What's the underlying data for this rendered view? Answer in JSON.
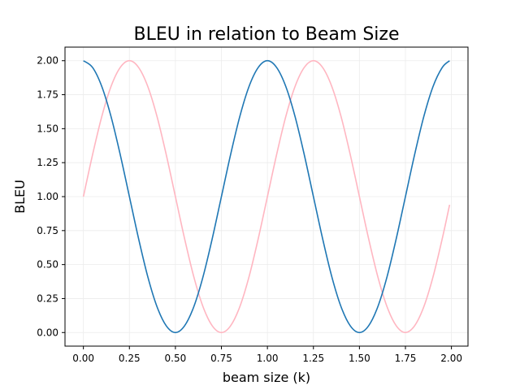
{
  "chart_data": {
    "type": "line",
    "title": "BLEU in relation to Beam Size",
    "xlabel": "beam size (k)",
    "ylabel": "BLEU",
    "xlim": [
      -0.1,
      2.09
    ],
    "ylim": [
      -0.1,
      2.1
    ],
    "xticks": [
      "0.00",
      "0.25",
      "0.50",
      "0.75",
      "1.00",
      "1.25",
      "1.50",
      "1.75",
      "2.00"
    ],
    "yticks": [
      "0.00",
      "0.25",
      "0.50",
      "0.75",
      "1.00",
      "1.25",
      "1.50",
      "1.75",
      "2.00"
    ],
    "grid": true,
    "legend": false,
    "x": [
      0.0,
      0.05,
      0.1,
      0.15,
      0.2,
      0.25,
      0.3,
      0.35,
      0.4,
      0.45,
      0.5,
      0.55,
      0.6,
      0.65,
      0.7,
      0.75,
      0.8,
      0.85,
      0.9,
      0.95,
      1.0,
      1.05,
      1.1,
      1.15,
      1.2,
      1.25,
      1.3,
      1.35,
      1.4,
      1.45,
      1.5,
      1.55,
      1.6,
      1.65,
      1.7,
      1.75,
      1.8,
      1.85,
      1.9,
      1.95,
      1.99
    ],
    "series": [
      {
        "color": "#ffb6c1",
        "values": [
          1.0,
          1.31,
          1.59,
          1.81,
          1.95,
          2.0,
          1.95,
          1.81,
          1.59,
          1.31,
          1.0,
          0.69,
          0.41,
          0.19,
          0.05,
          0.0,
          0.05,
          0.19,
          0.41,
          0.69,
          1.0,
          1.31,
          1.59,
          1.81,
          1.95,
          2.0,
          1.95,
          1.81,
          1.59,
          1.31,
          1.0,
          0.69,
          0.41,
          0.19,
          0.05,
          0.0,
          0.05,
          0.19,
          0.41,
          0.69,
          0.94
        ]
      },
      {
        "color": "#1f77b4",
        "values": [
          2.0,
          1.95,
          1.81,
          1.59,
          1.31,
          1.0,
          0.69,
          0.41,
          0.19,
          0.05,
          0.0,
          0.05,
          0.19,
          0.41,
          0.69,
          1.0,
          1.31,
          1.59,
          1.81,
          1.95,
          2.0,
          1.95,
          1.81,
          1.59,
          1.31,
          1.0,
          0.69,
          0.41,
          0.19,
          0.05,
          0.0,
          0.05,
          0.19,
          0.41,
          0.69,
          1.0,
          1.31,
          1.59,
          1.81,
          1.95,
          2.0
        ]
      }
    ]
  }
}
